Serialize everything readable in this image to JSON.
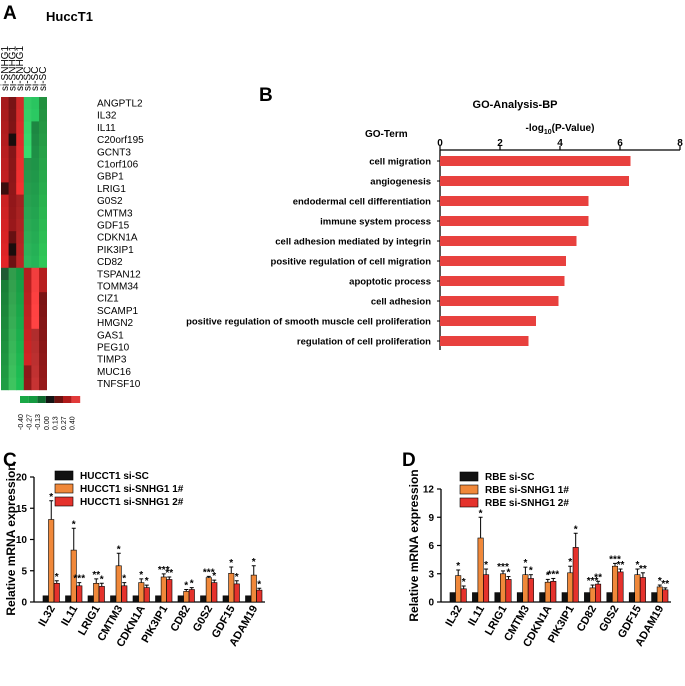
{
  "panels": {
    "a": {
      "label": "A",
      "title": "HuccT1",
      "samples": [
        "si-SNHG1",
        "si-SNHG1",
        "si-SNHG1",
        "si-SC",
        "si-SC",
        "si-SC"
      ],
      "genes": [
        "ANGPTL2",
        "IL32",
        "IL11",
        "C20orf195",
        "GCNT3",
        "C1orf106",
        "GBP1",
        "LRIG1",
        "G0S2",
        "CMTM3",
        "GDF15",
        "CDKN1A",
        "PIK3IP1",
        "CD82",
        "TSPAN12",
        "TOMM34",
        "CIZ1",
        "SCAMP1",
        "HMGN2",
        "GAS1",
        "PEG10",
        "TIMP3",
        "MUC16",
        "TNFSF10"
      ],
      "color_key_ticks": [
        "-0.40",
        "-0.27",
        "-0.13",
        "0.00",
        "0.13",
        "0.27",
        "0.40"
      ],
      "color_key_colors": [
        "#1aa846",
        "#159a40",
        "#0f6a2e",
        "#141414",
        "#6c1210",
        "#b01a1a",
        "#e23a3a"
      ]
    },
    "b": {
      "label": "B",
      "title": "GO-Analysis-BP",
      "ylabel": "GO-Term",
      "xlabel_pre": "-log",
      "xlabel_sub": "10",
      "xlabel_post": "(P-Value)"
    },
    "c": {
      "label": "C",
      "legend": [
        "HUCCT1 si-SC",
        "HUCCT1 si-SNHG1 1#",
        "HUCCT1 si-SNHG1 2#"
      ]
    },
    "d": {
      "label": "D",
      "legend": [
        "RBE si-SC",
        "RBE si-SNHG1 1#",
        "RBE si-SNHG1 2#"
      ]
    }
  },
  "chart_data": [
    {
      "id": "go-bp",
      "type": "bar",
      "orientation": "horizontal",
      "title": "GO-Analysis-BP",
      "categories": [
        "cell migration",
        "angiogenesis",
        "endodermal cell differentiation",
        "immune system process",
        "cell adhesion mediated by integrin",
        "positive regulation of cell migration",
        "apoptotic process",
        "cell adhesion",
        "positive regulation of smooth muscle cell proliferation",
        "regulation of cell proliferation"
      ],
      "values": [
        6.35,
        6.3,
        4.95,
        4.95,
        4.55,
        4.2,
        4.15,
        3.95,
        3.2,
        2.95
      ],
      "xlim": [
        0,
        8
      ],
      "xticks": [
        "0",
        "2",
        "4",
        "6",
        "8"
      ],
      "color": "#e8413e"
    },
    {
      "id": "hucct1-qpcr",
      "type": "bar",
      "ylabel": "Relative mRNA expression",
      "ylim": [
        0,
        20
      ],
      "yticks": [
        "0",
        "5",
        "10",
        "15",
        "20"
      ],
      "categories": [
        "IL32",
        "IL11",
        "LRIG1",
        "CMTM3",
        "CDKN1A",
        "PIK3IP1",
        "CD82",
        "G0S2",
        "GDF15",
        "ADAM19"
      ],
      "series": [
        {
          "name": "HUCCT1 si-SC",
          "color": "#111111",
          "values": [
            1,
            1,
            1,
            1,
            1,
            1,
            1,
            1,
            1,
            1
          ],
          "errors": [
            0,
            0,
            0,
            0,
            0,
            0,
            0,
            0,
            0,
            0
          ]
        },
        {
          "name": "HUCCT1 si-SNHG1 1#",
          "color": "#f0883a",
          "values": [
            13.2,
            8.3,
            3.0,
            5.8,
            3.1,
            4.0,
            1.7,
            3.9,
            4.6,
            4.3
          ],
          "errors": [
            3.0,
            3.5,
            0.7,
            2.0,
            0.6,
            0.5,
            0.3,
            0.2,
            1.0,
            1.5
          ]
        },
        {
          "name": "HUCCT1 si-SNHG1 2#",
          "color": "#e5322c",
          "values": [
            3.0,
            2.6,
            2.5,
            2.6,
            2.3,
            3.6,
            2.0,
            3.1,
            2.9,
            1.9
          ],
          "errors": [
            0.4,
            0.5,
            0.5,
            0.5,
            0.4,
            0.4,
            0.3,
            0.4,
            0.5,
            0.3
          ]
        }
      ],
      "annotations": [
        [
          "*",
          "*"
        ],
        [
          "*",
          "***"
        ],
        [
          "**",
          "*"
        ],
        [
          "*",
          "*"
        ],
        [
          "*",
          "*"
        ],
        [
          "***",
          "**"
        ],
        [
          "*",
          "*"
        ],
        [
          "***",
          "*"
        ],
        [
          "*",
          "*"
        ],
        [
          "*",
          "*"
        ]
      ]
    },
    {
      "id": "rbe-qpcr",
      "type": "bar",
      "ylabel": "Relative mRNA expression",
      "ylim": [
        0,
        12
      ],
      "yticks": [
        "0",
        "3",
        "6",
        "9",
        "12"
      ],
      "categories": [
        "IL32",
        "IL11",
        "LRIG1",
        "CMTM3",
        "CDKN1A",
        "PIK3IP1",
        "CD82",
        "G0S2",
        "GDF15",
        "ADAM19"
      ],
      "series": [
        {
          "name": "RBE si-SC",
          "color": "#111111",
          "values": [
            1,
            1,
            1,
            1,
            1,
            1,
            1,
            1,
            1,
            1
          ],
          "errors": [
            0,
            0,
            0,
            0,
            0,
            0,
            0,
            0,
            0,
            0
          ]
        },
        {
          "name": "RBE si-SNHG1 1#",
          "color": "#f0883a",
          "values": [
            2.8,
            6.8,
            3.0,
            2.9,
            2.1,
            3.1,
            1.5,
            3.8,
            2.9,
            1.6
          ],
          "errors": [
            0.6,
            2.2,
            0.3,
            0.8,
            0.3,
            0.7,
            0.3,
            0.3,
            0.6,
            0.2
          ]
        },
        {
          "name": "RBE si-SNHG1 2#",
          "color": "#e5322c",
          "values": [
            1.4,
            2.9,
            2.4,
            2.5,
            2.2,
            5.8,
            1.9,
            3.2,
            2.6,
            1.3
          ],
          "errors": [
            0.3,
            0.6,
            0.3,
            0.4,
            0.3,
            1.5,
            0.3,
            0.3,
            0.5,
            0.2
          ]
        }
      ],
      "annotations": [
        [
          "*",
          "*"
        ],
        [
          "*",
          "*"
        ],
        [
          "***",
          "*"
        ],
        [
          "*",
          "*"
        ],
        [
          "*",
          "***"
        ],
        [
          "*",
          "*"
        ],
        [
          "***",
          "**"
        ],
        [
          "***",
          "**"
        ],
        [
          "*",
          "**"
        ],
        [
          "*",
          "**"
        ]
      ]
    }
  ]
}
